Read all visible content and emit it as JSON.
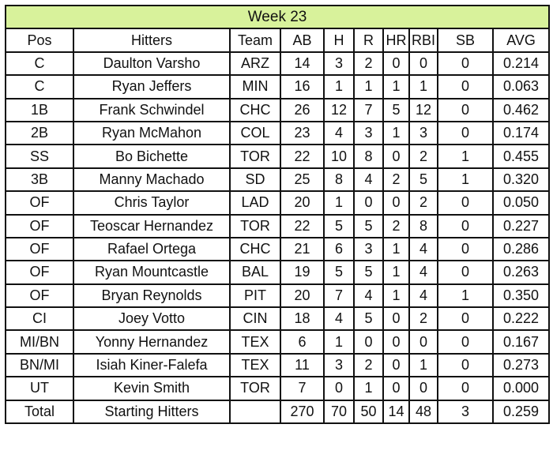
{
  "title": "Week 23",
  "title_bg_color": "#d8f29b",
  "headers": [
    "Pos",
    "Hitters",
    "Team",
    "AB",
    "H",
    "R",
    "HR",
    "RBI",
    "SB",
    "AVG"
  ],
  "rows": [
    [
      "C",
      "Daulton Varsho",
      "ARZ",
      "14",
      "3",
      "2",
      "0",
      "0",
      "0",
      "0.214"
    ],
    [
      "C",
      "Ryan Jeffers",
      "MIN",
      "16",
      "1",
      "1",
      "1",
      "1",
      "0",
      "0.063"
    ],
    [
      "1B",
      "Frank Schwindel",
      "CHC",
      "26",
      "12",
      "7",
      "5",
      "12",
      "0",
      "0.462"
    ],
    [
      "2B",
      "Ryan McMahon",
      "COL",
      "23",
      "4",
      "3",
      "1",
      "3",
      "0",
      "0.174"
    ],
    [
      "SS",
      "Bo Bichette",
      "TOR",
      "22",
      "10",
      "8",
      "0",
      "2",
      "1",
      "0.455"
    ],
    [
      "3B",
      "Manny Machado",
      "SD",
      "25",
      "8",
      "4",
      "2",
      "5",
      "1",
      "0.320"
    ],
    [
      "OF",
      "Chris Taylor",
      "LAD",
      "20",
      "1",
      "0",
      "0",
      "2",
      "0",
      "0.050"
    ],
    [
      "OF",
      "Teoscar Hernandez",
      "TOR",
      "22",
      "5",
      "5",
      "2",
      "8",
      "0",
      "0.227"
    ],
    [
      "OF",
      "Rafael Ortega",
      "CHC",
      "21",
      "6",
      "3",
      "1",
      "4",
      "0",
      "0.286"
    ],
    [
      "OF",
      "Ryan Mountcastle",
      "BAL",
      "19",
      "5",
      "5",
      "1",
      "4",
      "0",
      "0.263"
    ],
    [
      "OF",
      "Bryan Reynolds",
      "PIT",
      "20",
      "7",
      "4",
      "1",
      "4",
      "1",
      "0.350"
    ],
    [
      "CI",
      "Joey Votto",
      "CIN",
      "18",
      "4",
      "5",
      "0",
      "2",
      "0",
      "0.222"
    ],
    [
      "MI/BN",
      "Yonny Hernandez",
      "TEX",
      "6",
      "1",
      "0",
      "0",
      "0",
      "0",
      "0.167"
    ],
    [
      "BN/MI",
      "Isiah Kiner-Falefa",
      "TEX",
      "11",
      "3",
      "2",
      "0",
      "1",
      "0",
      "0.273"
    ],
    [
      "UT",
      "Kevin Smith",
      "TOR",
      "7",
      "0",
      "1",
      "0",
      "0",
      "0",
      "0.000"
    ]
  ],
  "total": [
    "Total",
    "Starting Hitters",
    "",
    "270",
    "70",
    "50",
    "14",
    "48",
    "3",
    "0.259"
  ]
}
